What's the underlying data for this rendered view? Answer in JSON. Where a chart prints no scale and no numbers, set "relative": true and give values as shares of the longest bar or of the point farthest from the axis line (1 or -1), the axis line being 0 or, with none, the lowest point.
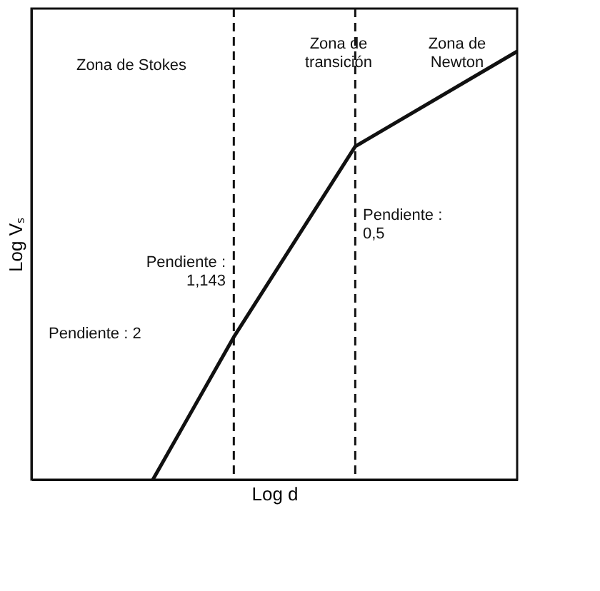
{
  "chart_data": {
    "type": "line",
    "relative": true,
    "xlabel": "Log d",
    "ylabel": "Log Vₛ",
    "categories": [
      null,
      null,
      null,
      null,
      null,
      null,
      null,
      null,
      null,
      null,
      null,
      null,
      null
    ],
    "series": [
      {
        "color": "#111111",
        "values": [
          null,
          null,
          null,
          0,
          null,
          0.333,
          null,
          null,
          0.778,
          null,
          null,
          null,
          1.0
        ]
      }
    ],
    "annotations": [
      "Zona de Stokes",
      "Zona de\ntransición",
      "Zona de\nNewton",
      "Pendiente : 2",
      "Pendiente :\n1,143",
      "Pendiente :\n0,5"
    ],
    "marker": "none",
    "line_style": "solid"
  }
}
